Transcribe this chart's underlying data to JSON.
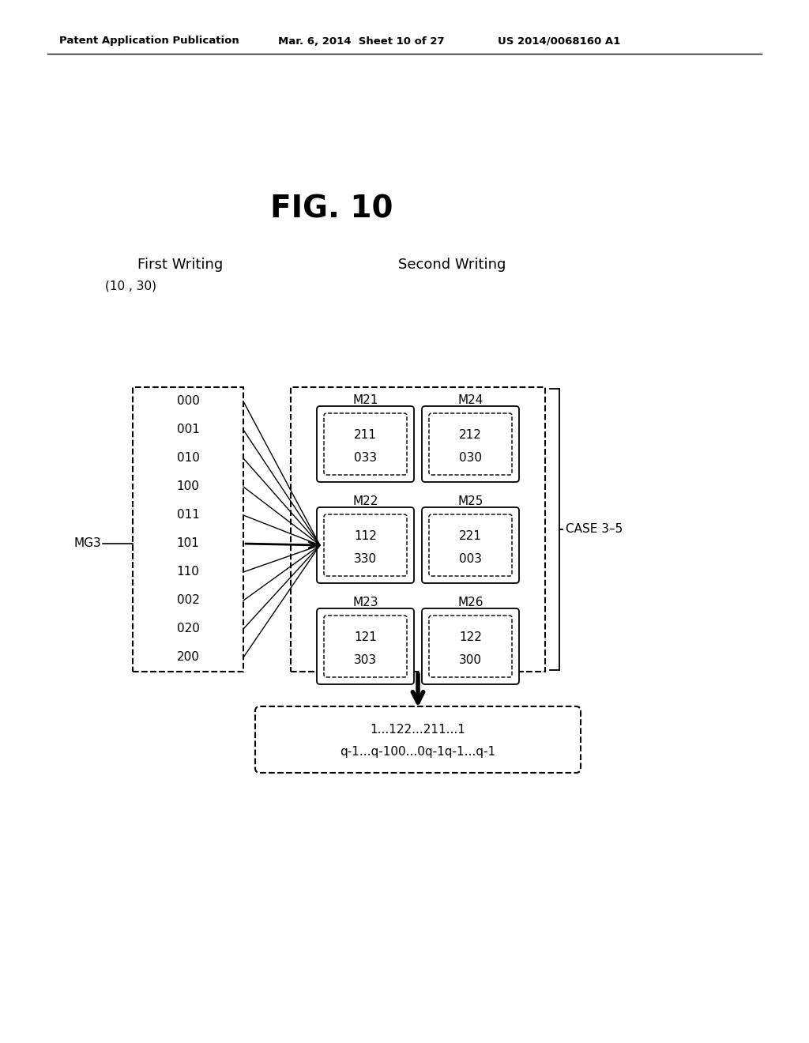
{
  "fig_title": "FIG. 10",
  "header_left": "Patent Application Publication",
  "header_mid": "Mar. 6, 2014  Sheet 10 of 27",
  "header_right": "US 2014/0068160 A1",
  "col1_header": "First Writing",
  "col2_header": "Second Writing",
  "label_10_30": "(10 , 30)",
  "label_MG3": "MG3",
  "label_CASE": "CASE 3–5",
  "left_items": [
    "000",
    "001",
    "010",
    "100",
    "011",
    "101",
    "110",
    "002",
    "020",
    "200"
  ],
  "modules_top_left": {
    "name": "M21",
    "lines": [
      "211",
      "033"
    ]
  },
  "modules_top_right": {
    "name": "M24",
    "lines": [
      "212",
      "030"
    ]
  },
  "modules_mid_left": {
    "name": "M22",
    "lines": [
      "112",
      "330"
    ]
  },
  "modules_mid_right": {
    "name": "M25",
    "lines": [
      "221",
      "003"
    ]
  },
  "modules_bot_left": {
    "name": "M23",
    "lines": [
      "121",
      "303"
    ]
  },
  "modules_bot_right": {
    "name": "M26",
    "lines": [
      "122",
      "300"
    ]
  },
  "output_line1": "1...122...211...1",
  "output_line2": "q-1...q-100...0q-1q-1...q-1",
  "bg_color": "#ffffff",
  "text_color": "#000000"
}
